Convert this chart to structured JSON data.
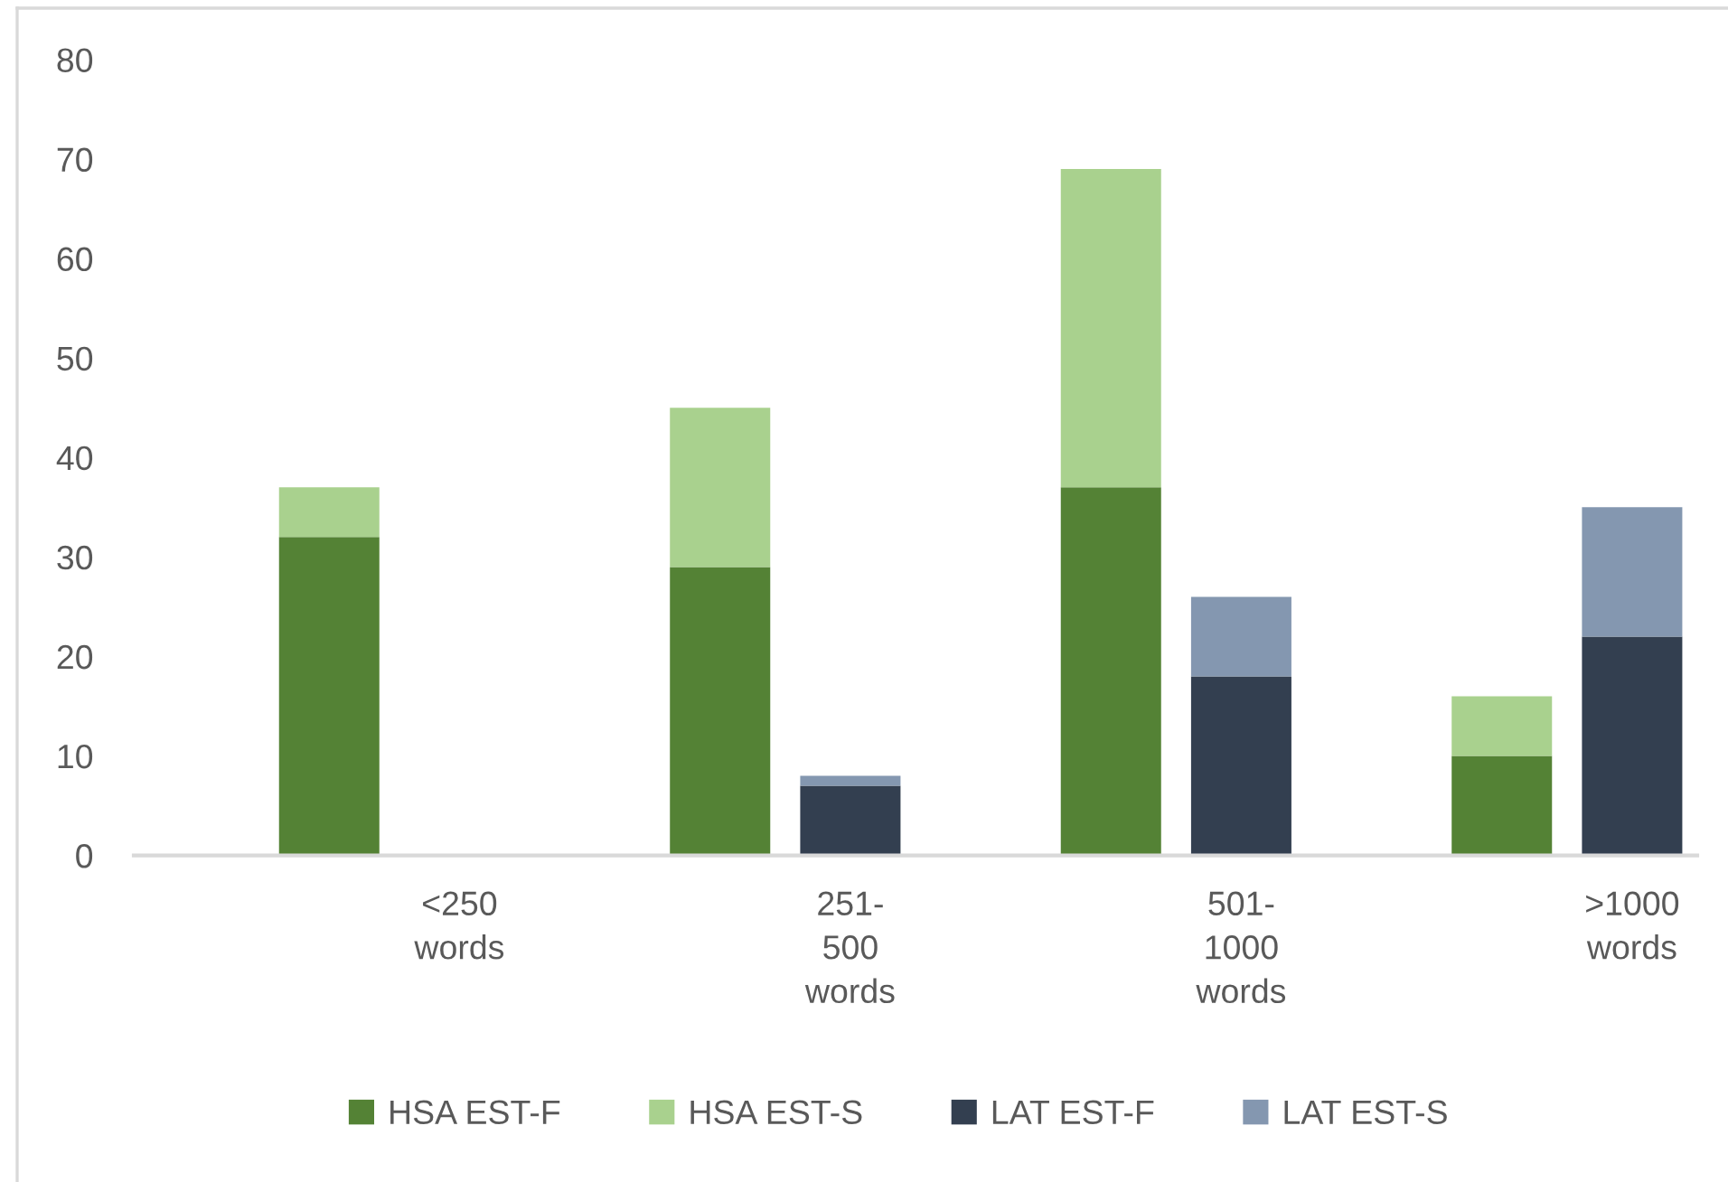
{
  "chart_data": {
    "type": "bar",
    "stacked": true,
    "categories": [
      null,
      null,
      "<250 words",
      null,
      null,
      "251-500 words",
      null,
      null,
      "501-1000 words",
      null,
      null,
      ">1000 words"
    ],
    "series": [
      {
        "name": "HSA EST-F",
        "color": "#548235",
        "values": [
          null,
          32,
          null,
          null,
          29,
          null,
          null,
          37,
          null,
          null,
          10,
          null
        ]
      },
      {
        "name": "HSA EST-S",
        "color": "#a9d18e",
        "values": [
          null,
          5,
          null,
          null,
          16,
          null,
          null,
          32,
          null,
          null,
          6,
          null
        ]
      },
      {
        "name": "LAT EST-F",
        "color": "#333f50",
        "values": [
          null,
          null,
          null,
          null,
          null,
          7,
          null,
          null,
          18,
          null,
          null,
          22
        ]
      },
      {
        "name": "LAT EST-S",
        "color": "#8497b0",
        "values": [
          null,
          null,
          null,
          null,
          null,
          1,
          null,
          null,
          8,
          null,
          null,
          13
        ]
      }
    ],
    "ylim": [
      0,
      80
    ],
    "yticks": [
      0,
      10,
      20,
      30,
      40,
      50,
      60,
      70,
      80
    ],
    "grid": false,
    "legend": "bottom"
  }
}
